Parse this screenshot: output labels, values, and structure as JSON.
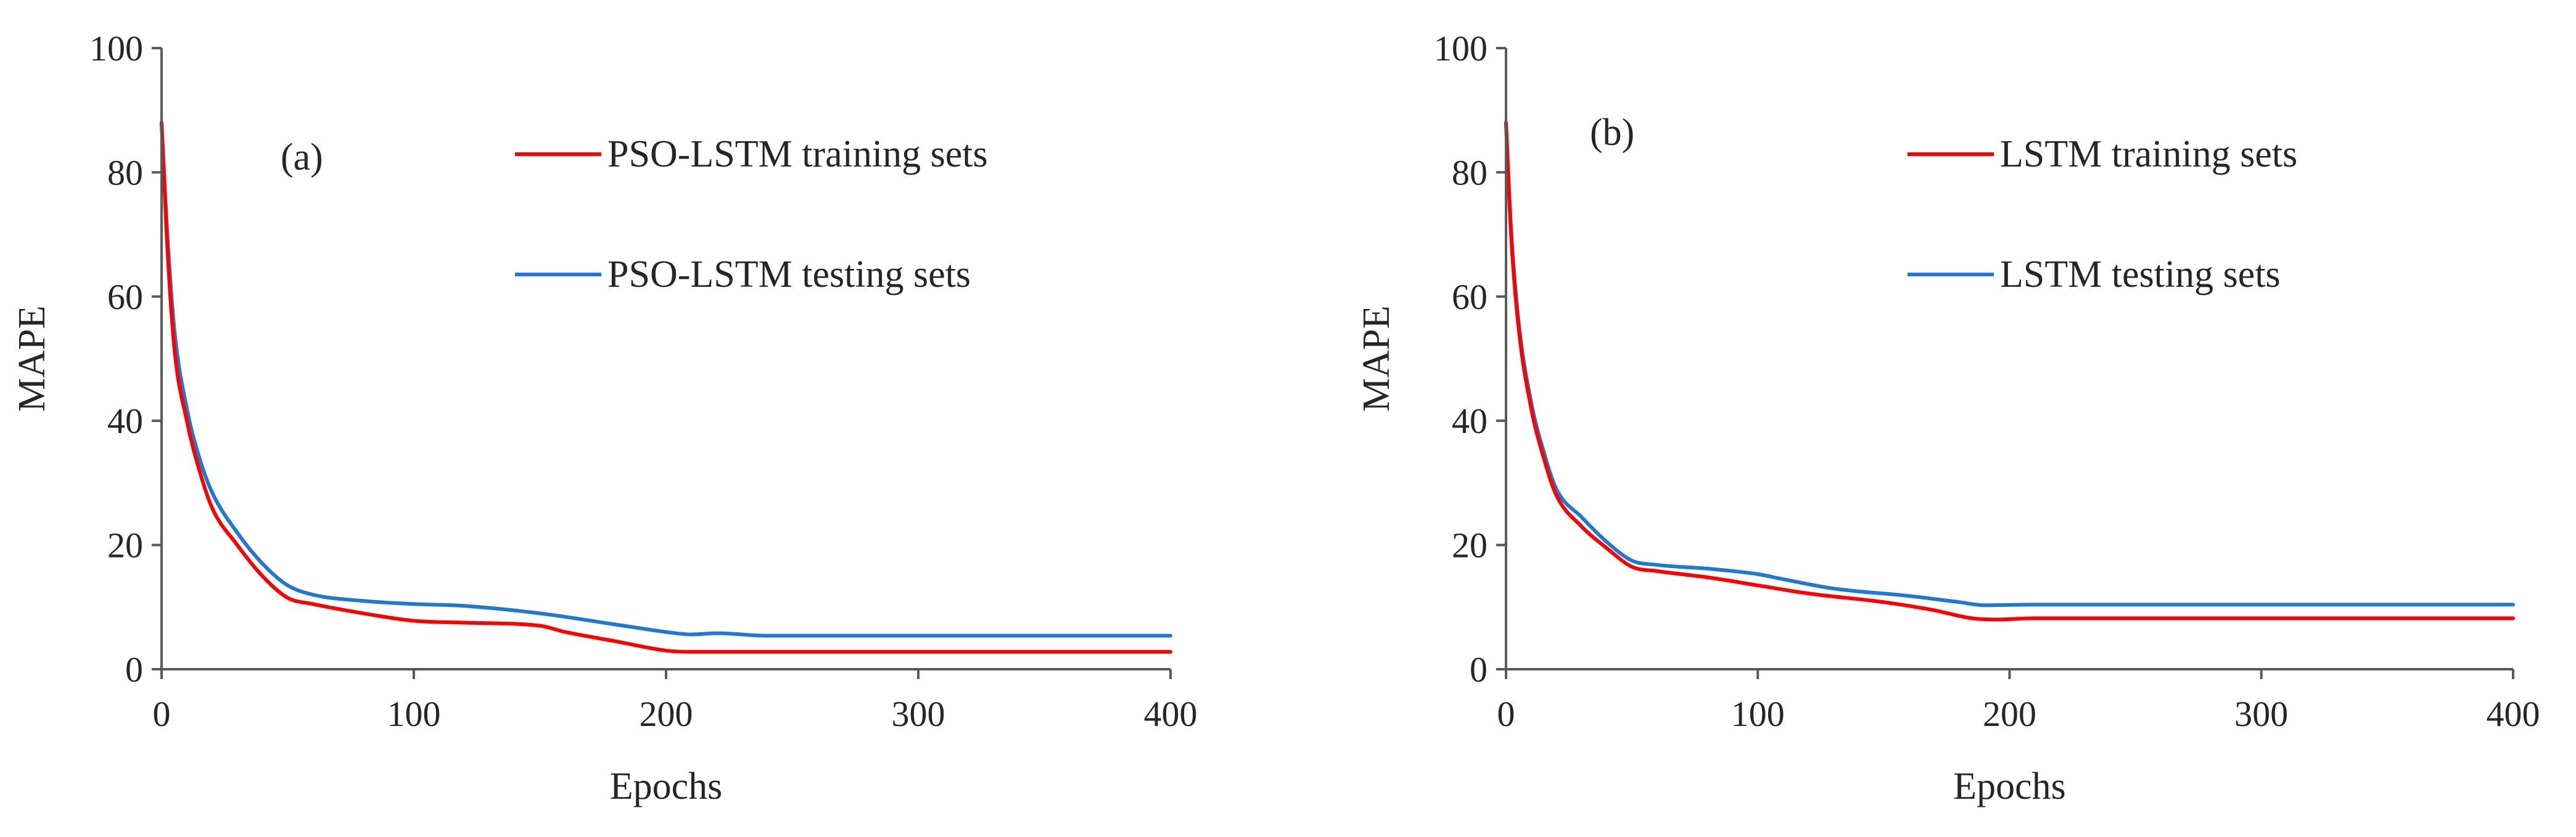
{
  "chart_data": [
    {
      "type": "line",
      "panel_label": "(a)",
      "xlabel": "Epochs",
      "ylabel": "MAPE",
      "xlim": [
        0,
        400
      ],
      "ylim": [
        0,
        100
      ],
      "xticks": [
        0,
        100,
        200,
        300,
        400
      ],
      "yticks": [
        0,
        20,
        40,
        60,
        80,
        100
      ],
      "grid": false,
      "legend_position": "top-right",
      "series": [
        {
          "name": "PSO-LSTM training sets",
          "color": "#ff0000",
          "x": [
            0,
            2,
            5,
            10,
            15,
            20,
            30,
            40,
            50,
            60,
            80,
            100,
            120,
            150,
            160,
            180,
            200,
            210,
            250,
            300,
            350,
            400
          ],
          "y": [
            88,
            70,
            52,
            40,
            32,
            26,
            20,
            15,
            11.5,
            10.5,
            9,
            7.8,
            7.5,
            7,
            6,
            4.5,
            3,
            2.8,
            2.8,
            2.8,
            2.8,
            2.8
          ]
        },
        {
          "name": "PSO-LSTM testing sets",
          "color": "#1f78d1",
          "x": [
            0,
            2,
            5,
            10,
            15,
            20,
            30,
            40,
            50,
            60,
            80,
            100,
            120,
            150,
            180,
            200,
            210,
            220,
            240,
            300,
            350,
            400
          ],
          "y": [
            88,
            72,
            55,
            42,
            34,
            28.5,
            22,
            17,
            13.5,
            12,
            11,
            10.5,
            10.2,
            9,
            7.2,
            6,
            5.6,
            5.8,
            5.4,
            5.4,
            5.4,
            5.4
          ]
        }
      ]
    },
    {
      "type": "line",
      "panel_label": "(b)",
      "xlabel": "Epochs",
      "ylabel": "MAPE",
      "xlim": [
        0,
        400
      ],
      "ylim": [
        0,
        100
      ],
      "xticks": [
        0,
        100,
        200,
        300,
        400
      ],
      "yticks": [
        0,
        20,
        40,
        60,
        80,
        100
      ],
      "grid": false,
      "legend_position": "top-right",
      "series": [
        {
          "name": "LSTM training sets",
          "color": "#ff0000",
          "x": [
            0,
            2,
            5,
            10,
            15,
            20,
            30,
            40,
            50,
            60,
            80,
            100,
            120,
            150,
            170,
            185,
            195,
            210,
            250,
            300,
            350,
            400
          ],
          "y": [
            88,
            70,
            55,
            42,
            34,
            28,
            23,
            19.5,
            16.5,
            15.8,
            14.8,
            13.5,
            12.2,
            10.8,
            9.5,
            8.2,
            8,
            8.2,
            8.2,
            8.2,
            8.2,
            8.2
          ]
        },
        {
          "name": "LSTM testing sets",
          "color": "#1f78d1",
          "x": [
            0,
            2,
            5,
            10,
            15,
            20,
            30,
            40,
            50,
            60,
            80,
            100,
            110,
            130,
            160,
            180,
            190,
            210,
            250,
            300,
            350,
            400
          ],
          "y": [
            88,
            71,
            56,
            43,
            35,
            29,
            24.5,
            20.5,
            17.5,
            16.8,
            16.2,
            15.3,
            14.5,
            13,
            11.8,
            10.8,
            10.3,
            10.4,
            10.4,
            10.4,
            10.4,
            10.4
          ]
        }
      ]
    }
  ]
}
